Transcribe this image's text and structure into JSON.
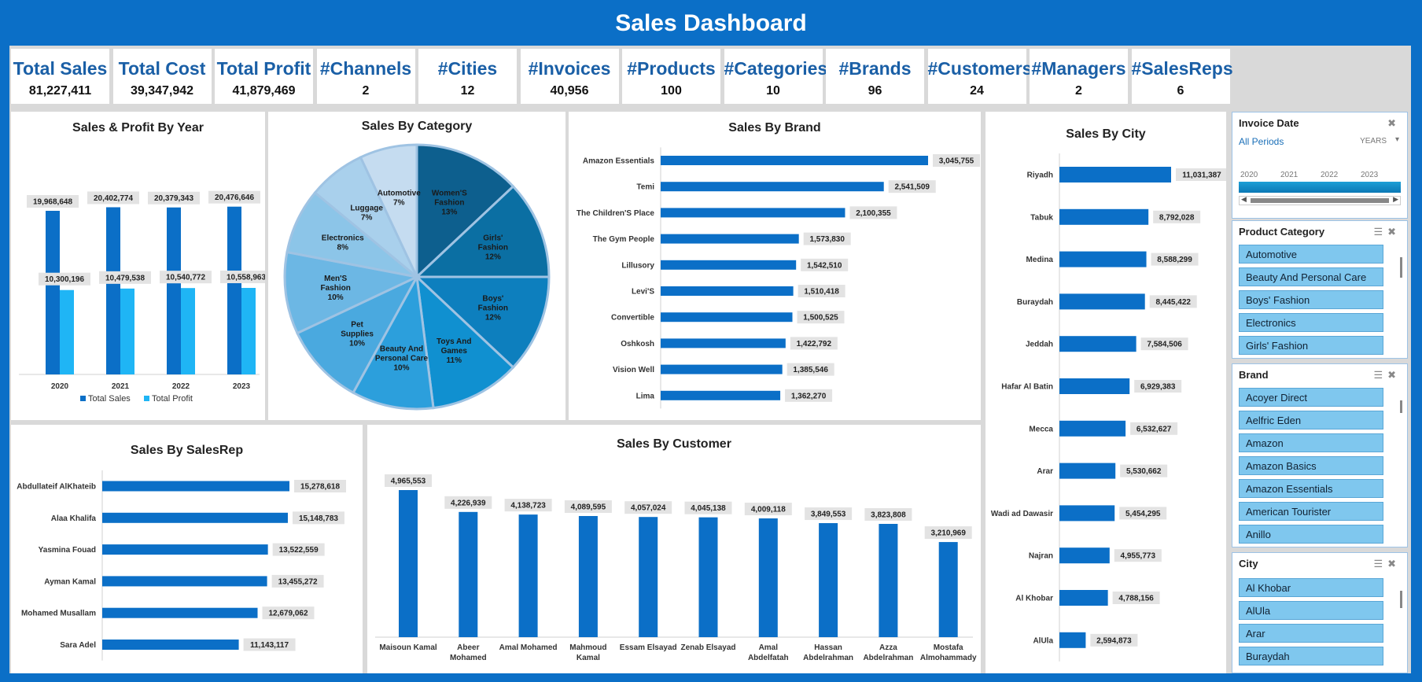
{
  "dashboard_title": "Sales Dashboard",
  "kpis": [
    {
      "label": "Total Sales",
      "value": "81,227,411"
    },
    {
      "label": "Total Cost",
      "value": "39,347,942"
    },
    {
      "label": "Total Profit",
      "value": "41,879,469"
    },
    {
      "label": "#Channels",
      "value": "2"
    },
    {
      "label": "#Cities",
      "value": "12"
    },
    {
      "label": "#Invoices",
      "value": "40,956"
    },
    {
      "label": "#Products",
      "value": "100"
    },
    {
      "label": "#Categories",
      "value": "10"
    },
    {
      "label": "#Brands",
      "value": "96"
    },
    {
      "label": "#Customers",
      "value": "24"
    },
    {
      "label": "#Managers",
      "value": "2"
    },
    {
      "label": "#SalesReps",
      "value": "6"
    }
  ],
  "colors": {
    "header": "#0b6fc7",
    "series_dark": "#0b6fc7",
    "series_light": "#1fb5f5",
    "kpi_label": "#1a5fa6"
  },
  "slicers": {
    "invoice_date": {
      "title": "Invoice Date",
      "period_label": "All Periods",
      "unit_label": "YEARS",
      "years": [
        "2020",
        "2021",
        "2022",
        "2023"
      ]
    },
    "product_category": {
      "title": "Product Category",
      "items": [
        "Automotive",
        "Beauty And Personal Care",
        "Boys' Fashion",
        "Electronics",
        "Girls' Fashion"
      ]
    },
    "brand": {
      "title": "Brand",
      "items": [
        "Acoyer Direct",
        "Aelfric Eden",
        "Amazon",
        "Amazon Basics",
        "Amazon Essentials",
        "American Tourister",
        "Anillo"
      ]
    },
    "city": {
      "title": "City",
      "items": [
        "Al Khobar",
        "AlUla",
        "Arar",
        "Buraydah"
      ]
    }
  },
  "chart_data": [
    {
      "id": "year",
      "type": "bar",
      "title": "Sales & Profit By Year",
      "categories": [
        "2020",
        "2021",
        "2022",
        "2023"
      ],
      "series": [
        {
          "name": "Total Sales",
          "values": [
            19968648,
            20402774,
            20379343,
            20476646
          ],
          "labels": [
            "19,968,648",
            "20,402,774",
            "20,379,343",
            "20,476,646"
          ]
        },
        {
          "name": "Total Profit",
          "values": [
            10300196,
            10479538,
            10540772,
            10558963
          ],
          "labels": [
            "10,300,196",
            "10,479,538",
            "10,540,772",
            "10,558,963"
          ]
        }
      ],
      "ylim": [
        0,
        24000000
      ],
      "legend": "bottom"
    },
    {
      "id": "category",
      "type": "pie",
      "title": "Sales By Category",
      "slices": [
        {
          "label": "Women'S Fashion",
          "percent": 13,
          "color": "#0d5f8e"
        },
        {
          "label": "Girls' Fashion",
          "percent": 12,
          "color": "#0b6fa3"
        },
        {
          "label": "Boys' Fashion",
          "percent": 12,
          "color": "#0d7fbe"
        },
        {
          "label": "Toys And Games",
          "percent": 11,
          "color": "#1090d0"
        },
        {
          "label": "Beauty And Personal Care",
          "percent": 10,
          "color": "#2c9fdc"
        },
        {
          "label": "Pet Supplies",
          "percent": 10,
          "color": "#4aa9df"
        },
        {
          "label": "Men'S Fashion",
          "percent": 10,
          "color": "#6cb7e4"
        },
        {
          "label": "Electronics",
          "percent": 8,
          "color": "#8cc5e8"
        },
        {
          "label": "Luggage",
          "percent": 7,
          "color": "#a9d0ec"
        },
        {
          "label": "Automotive",
          "percent": 7,
          "color": "#c5dcf0"
        }
      ]
    },
    {
      "id": "brand",
      "type": "bar",
      "orientation": "horizontal",
      "title": "Sales By Brand",
      "categories": [
        "Amazon Essentials",
        "Temi",
        "The Children'S Place",
        "The Gym People",
        "Lillusory",
        "Levi'S",
        "Convertible",
        "Oshkosh",
        "Vision Well",
        "Lima"
      ],
      "values": [
        3045755,
        2541509,
        2100355,
        1573830,
        1542510,
        1510418,
        1500525,
        1422792,
        1385546,
        1362270
      ],
      "labels": [
        "3,045,755",
        "2,541,509",
        "2,100,355",
        "1,573,830",
        "1,542,510",
        "1,510,418",
        "1,500,525",
        "1,422,792",
        "1,385,546",
        "1,362,270"
      ]
    },
    {
      "id": "city",
      "type": "bar",
      "orientation": "horizontal",
      "title": "Sales By City",
      "categories": [
        "Riyadh",
        "Tabuk",
        "Medina",
        "Buraydah",
        "Jeddah",
        "Hafar Al Batin",
        "Mecca",
        "Arar",
        "Wadi ad Dawasir",
        "Najran",
        "Al Khobar",
        "AlUla"
      ],
      "values": [
        11031387,
        8792028,
        8588299,
        8445422,
        7584506,
        6929383,
        6532627,
        5530662,
        5454295,
        4955773,
        4788156,
        2594873
      ],
      "labels": [
        "11,031,387",
        "8,792,028",
        "8,588,299",
        "8,445,422",
        "7,584,506",
        "6,929,383",
        "6,532,627",
        "5,530,662",
        "5,454,295",
        "4,955,773",
        "4,788,156",
        "2,594,873"
      ]
    },
    {
      "id": "salesrep",
      "type": "bar",
      "orientation": "horizontal",
      "title": "Sales By SalesRep",
      "categories": [
        "Abdullateif AlKhateib",
        "Alaa Khalifa",
        "Yasmina Fouad",
        "Ayman Kamal",
        "Mohamed Musallam",
        "Sara Adel"
      ],
      "values": [
        15278618,
        15148783,
        13522559,
        13455272,
        12679062,
        11143117
      ],
      "labels": [
        "15,278,618",
        "15,148,783",
        "13,522,559",
        "13,455,272",
        "12,679,062",
        "11,143,117"
      ]
    },
    {
      "id": "customer",
      "type": "bar",
      "title": "Sales By Customer",
      "categories": [
        "Maisoun Kamal",
        "Abeer Mohamed",
        "Amal Mohamed",
        "Mahmoud Kamal",
        "Essam Elsayad",
        "Zenab Elsayad",
        "Amal Abdelfatah",
        "Hassan Abdelrahman",
        "Azza Abdelrahman",
        "Mostafa Almohammady"
      ],
      "values": [
        4965553,
        4226939,
        4138723,
        4089595,
        4057024,
        4045138,
        4009118,
        3849553,
        3823808,
        3210969
      ],
      "labels": [
        "4,965,553",
        "4,226,939",
        "4,138,723",
        "4,089,595",
        "4,057,024",
        "4,045,138",
        "4,009,118",
        "3,849,553",
        "3,823,808",
        "3,210,969"
      ]
    }
  ]
}
